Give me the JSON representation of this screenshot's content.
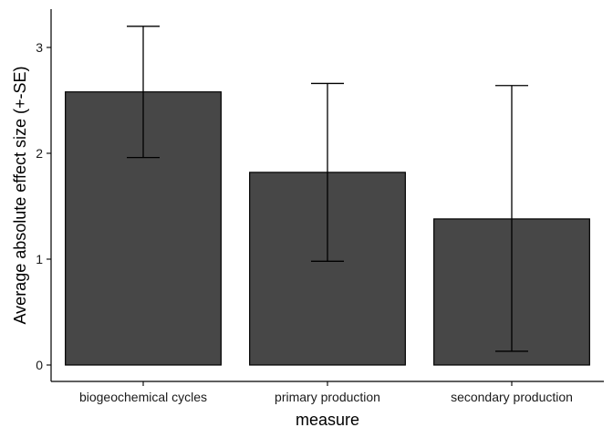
{
  "chart_data": {
    "type": "bar",
    "categories": [
      "biogeochemical cycles",
      "primary production",
      "secondary production"
    ],
    "values": [
      2.58,
      1.82,
      1.38
    ],
    "error_low": [
      1.96,
      0.98,
      0.13
    ],
    "error_high": [
      3.2,
      2.66,
      2.64
    ],
    "xlabel": "measure",
    "ylabel": "Average absolute effect size (+-SE)",
    "ylim": [
      0,
      3.35
    ],
    "yticks": [
      0,
      1,
      2,
      3
    ],
    "grid": false,
    "legend": "none",
    "colors": {
      "bar_fill": "#474747",
      "bar_stroke": "#000000",
      "error_bar": "#000000",
      "axis": "#000000"
    }
  }
}
